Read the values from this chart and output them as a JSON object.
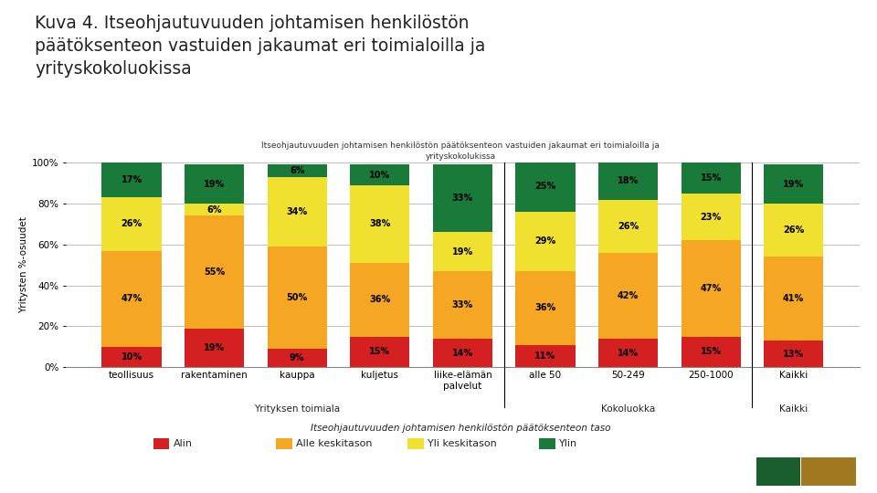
{
  "title_main": "Kuva 4. Itseohjautuvuuden johtamisen henkilöstön\npäätöksenteon vastuiden jakaumat eri toimialoilla ja\nyrityskokoluokissa",
  "chart_title_line1": "Itseohjautuvuuden johtamisen henkilöstön päätöksenteon vastuiden jakaumat eri toimialoilla ja",
  "chart_title_line2": "yrityskokolukissa",
  "categories": [
    "teollisuus",
    "rakentaminen",
    "kauppa",
    "kuljetus",
    "liike-elämän\npalvelut",
    "alle 50",
    "50-249",
    "250-1000",
    "Kaikki"
  ],
  "group_labels": [
    "Yrityksen toimiala",
    "Kokoluokka",
    "Kaikki"
  ],
  "xlabel": "Itseohjautuvuuden johtamisen henkilöstön päätöksenteon taso",
  "ylabel": "Yritysten %-osuudet",
  "series": {
    "Alin": [
      10,
      19,
      9,
      15,
      14,
      11,
      14,
      15,
      13
    ],
    "Alle keskitason": [
      47,
      55,
      50,
      36,
      33,
      36,
      42,
      47,
      41
    ],
    "Yli keskitason": [
      26,
      6,
      34,
      38,
      19,
      29,
      26,
      23,
      26
    ],
    "Ylin": [
      17,
      19,
      6,
      10,
      33,
      25,
      18,
      15,
      19
    ]
  },
  "colors": {
    "Alin": "#d42020",
    "Alle keskitason": "#f5a623",
    "Yli keskitason": "#f0e030",
    "Ylin": "#1a7a3a"
  },
  "legend_labels": [
    "Alin",
    "Alle keskitason",
    "Yli keskitason",
    "Ylin"
  ],
  "ioj_color": "#1a5e2e",
  "year_color": "#a07820",
  "background_color": "#ffffff",
  "grid_color": "#c0c0c0",
  "ylim": [
    0,
    100
  ],
  "yticks": [
    0,
    20,
    40,
    60,
    80,
    100
  ],
  "yticklabels": [
    "0%",
    "20%",
    "40%",
    "60%",
    "80%",
    "100%"
  ]
}
